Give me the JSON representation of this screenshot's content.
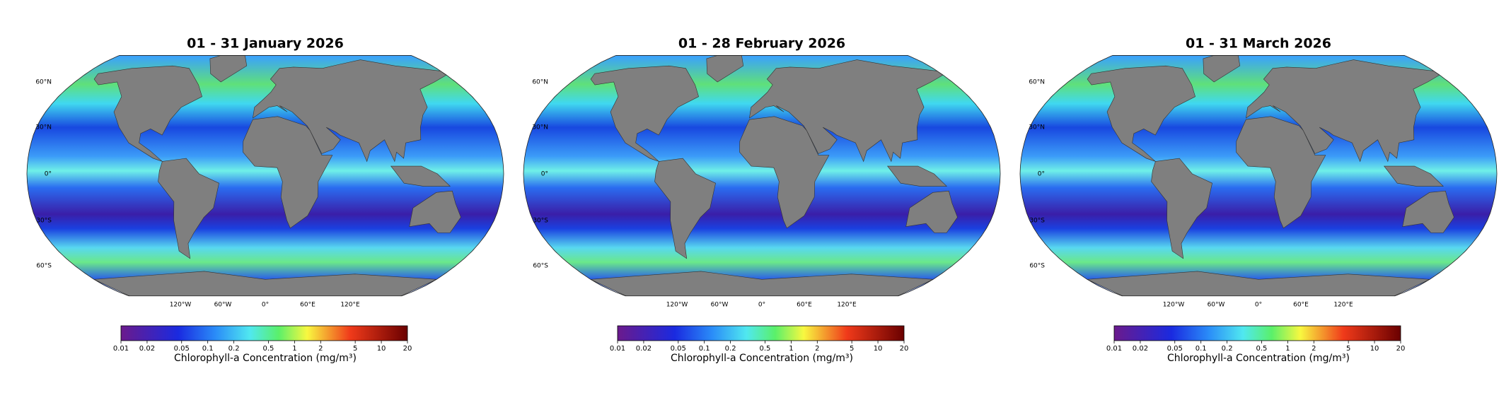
{
  "panels": [
    {
      "title": "01 - 31 January 2026"
    },
    {
      "title": "01 - 28 February 2026"
    },
    {
      "title": "01 - 31 March 2026"
    }
  ],
  "lat_labels": [
    "60°N",
    "30°N",
    "0°",
    "30°S",
    "60°S"
  ],
  "lon_labels": [
    "120°W",
    "60°W",
    "0°",
    "60°E",
    "120°E"
  ],
  "colorbar": {
    "label": "Chlorophyll-a Concentration (mg/m³)",
    "lim": [
      0.01,
      20
    ],
    "log": true,
    "ticks": [
      0.01,
      0.02,
      0.05,
      0.1,
      0.2,
      0.5,
      1,
      2,
      5,
      10,
      20
    ]
  }
}
